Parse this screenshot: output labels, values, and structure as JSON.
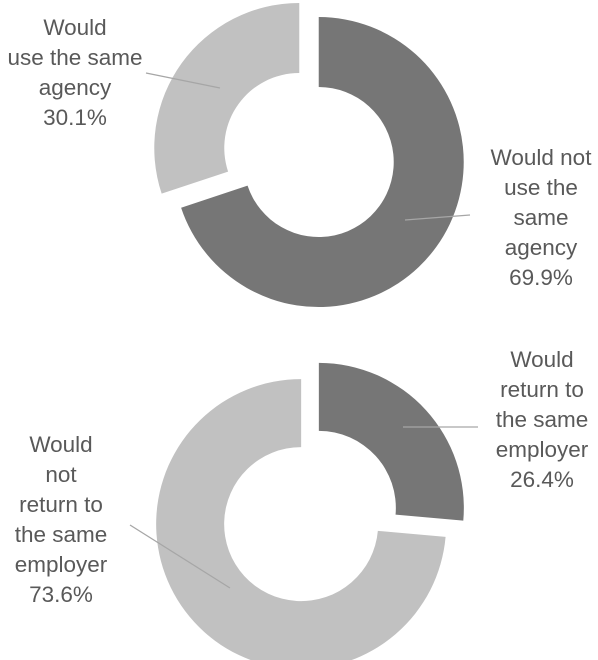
{
  "chart_data": [
    {
      "type": "donut",
      "title": "",
      "slices": [
        {
          "label_lines": [
            "Would not",
            "use the",
            "same",
            "agency"
          ],
          "value": 69.9,
          "value_label": "69.9%",
          "color": "#767676"
        },
        {
          "label_lines": [
            "Would",
            "use the same",
            "agency"
          ],
          "value": 30.1,
          "value_label": "30.1%",
          "color": "#c1c1c1"
        }
      ]
    },
    {
      "type": "donut",
      "title": "",
      "slices": [
        {
          "label_lines": [
            "Would",
            "return to",
            "the same",
            "employer"
          ],
          "value": 26.4,
          "value_label": "26.4%",
          "color": "#767676"
        },
        {
          "label_lines": [
            "Would",
            "not",
            "return to",
            "the same",
            "employer"
          ],
          "value": 73.6,
          "value_label": "73.6%",
          "color": "#c1c1c1"
        }
      ]
    }
  ]
}
